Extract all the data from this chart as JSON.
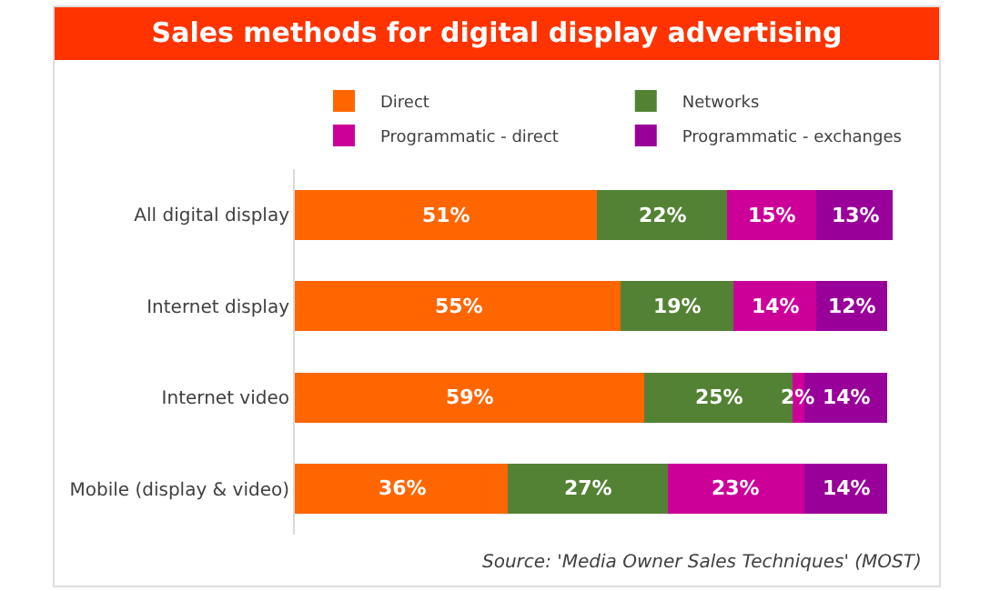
{
  "chart_data": {
    "type": "bar",
    "title": "Sales methods for digital display advertising",
    "orientation": "horizontal",
    "stacked": true,
    "legend": "top",
    "categories": [
      "All digital display",
      "Internet display",
      "Internet video",
      "Mobile (display & video)"
    ],
    "series": [
      {
        "name": "Direct",
        "color": "#ff6600",
        "values": [
          51,
          55,
          59,
          36
        ],
        "value_labels": [
          "51%",
          "55%",
          "59%",
          "36%"
        ]
      },
      {
        "name": "Networks",
        "color": "#548235",
        "values": [
          22,
          19,
          25,
          27
        ],
        "value_labels": [
          "22%",
          "19%",
          "25%",
          "27%"
        ]
      },
      {
        "name": "Programmatic - direct",
        "color": "#cc0099",
        "values": [
          15,
          14,
          2,
          23
        ],
        "value_labels": [
          "15%",
          "14%",
          "2%",
          "23%"
        ]
      },
      {
        "name": "Programmatic - exchanges",
        "color": "#990099",
        "values": [
          13,
          12,
          14,
          14
        ],
        "value_labels": [
          "13%",
          "12%",
          "14%",
          "14%"
        ]
      }
    ],
    "annotations": [
      "Source: 'Media Owner Sales Techniques' (MOST)"
    ]
  }
}
